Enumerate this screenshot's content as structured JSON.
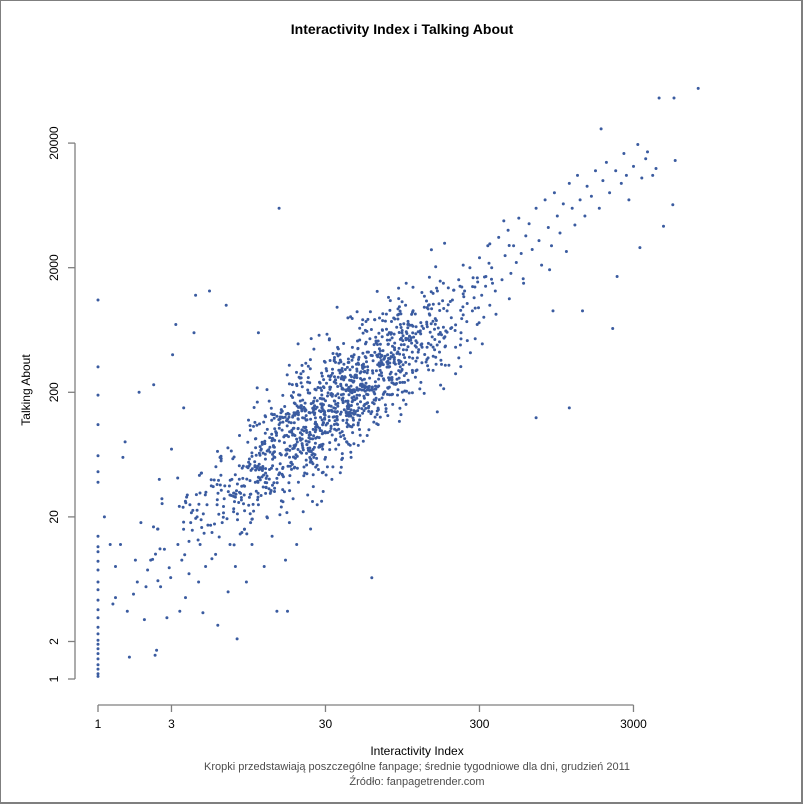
{
  "chart_data": {
    "type": "scatter",
    "title": "Interactivity Index i Talking About",
    "xlabel": "Interactivity Index",
    "ylabel": "Talking About",
    "subtitle_lines": [
      "Kropki przedstawiają poszczególne fanpage; średnie tygodniowe dla dni, grudzień 2011",
      "Źródło: fanpagetrender.com"
    ],
    "x_scale": "log",
    "y_scale": "log",
    "xlim": [
      1,
      3000
    ],
    "ylim": [
      1,
      20000
    ],
    "x_ticks": [
      1,
      3,
      30,
      300,
      3000
    ],
    "x_tick_labels": [
      "1",
      "3",
      "30",
      "300",
      "3000"
    ],
    "y_ticks": [
      1,
      2,
      20,
      200,
      2000,
      20000
    ],
    "y_tick_labels": [
      "1",
      "2",
      "20",
      "200",
      "2000",
      "20000"
    ],
    "grid": false,
    "legend": null,
    "point_color": "#3a5ba0",
    "point_count_approx": 1500,
    "trend": "strong positive log-log correlation; Talking About roughly proportional to Interactivity Index",
    "notable_points": [
      [
        7900,
        55000
      ],
      [
        4400,
        46000
      ],
      [
        5500,
        46000
      ],
      [
        1850,
        26000
      ],
      [
        2600,
        16500
      ],
      [
        3200,
        19500
      ],
      [
        3700,
        17000
      ],
      [
        4200,
        12500
      ],
      [
        5400,
        6400
      ],
      [
        5600,
        14500
      ],
      [
        4700,
        4300
      ],
      [
        3300,
        2900
      ],
      [
        2350,
        1700
      ],
      [
        1400,
        900
      ],
      [
        2200,
        650
      ],
      [
        1150,
        150
      ],
      [
        700,
        125
      ],
      [
        42,
        170
      ],
      [
        190,
        330
      ],
      [
        15,
        6000
      ],
      [
        5.8,
        1300
      ],
      [
        6.8,
        1000
      ],
      [
        3.2,
        700
      ],
      [
        1,
        1100
      ],
      [
        1,
        320
      ],
      [
        1,
        190
      ],
      [
        1,
        110
      ],
      [
        1,
        60
      ],
      [
        1,
        45
      ],
      [
        1,
        40
      ],
      [
        60,
        6.5
      ],
      [
        17,
        3.5
      ],
      [
        8,
        2.1
      ],
      [
        1.6,
        1.5
      ],
      [
        2.4,
        1.6
      ]
    ],
    "points": [
      [
        1,
        1.05
      ],
      [
        1,
        1.1
      ],
      [
        1,
        1.2
      ],
      [
        1,
        1.3
      ],
      [
        1,
        1.45
      ],
      [
        1,
        1.6
      ],
      [
        1,
        1.75
      ],
      [
        1,
        1.9
      ],
      [
        1,
        2.05
      ],
      [
        1,
        2.3
      ],
      [
        1,
        2.6
      ],
      [
        1,
        3.1
      ],
      [
        1,
        3.6
      ],
      [
        1,
        4.3
      ],
      [
        1,
        5.2
      ],
      [
        1,
        6.0
      ],
      [
        1,
        7.5
      ],
      [
        1,
        8.8
      ],
      [
        1,
        10.5
      ],
      [
        1,
        11.5
      ],
      [
        1,
        14
      ],
      [
        1,
        38
      ],
      [
        1,
        46
      ],
      [
        1,
        62
      ],
      [
        1,
        110
      ],
      [
        1,
        190
      ],
      [
        1,
        320
      ],
      [
        1,
        1100
      ],
      [
        1.1,
        20
      ],
      [
        1.2,
        12
      ],
      [
        1.25,
        4.0
      ],
      [
        1.3,
        8.0
      ],
      [
        1.3,
        4.5
      ],
      [
        1.4,
        12
      ],
      [
        1.45,
        60
      ],
      [
        1.5,
        80
      ],
      [
        1.55,
        3.5
      ],
      [
        1.6,
        1.5
      ],
      [
        1.7,
        4.8
      ],
      [
        1.75,
        9
      ],
      [
        1.8,
        6
      ],
      [
        1.85,
        200
      ],
      [
        1.9,
        18
      ],
      [
        2.0,
        3.0
      ],
      [
        2.05,
        5.5
      ],
      [
        2.1,
        7.5
      ],
      [
        2.2,
        9
      ],
      [
        2.3,
        230
      ],
      [
        2.35,
        1.55
      ],
      [
        2.4,
        1.7
      ],
      [
        2.45,
        16
      ],
      [
        2.5,
        40
      ],
      [
        2.55,
        5.5
      ],
      [
        2.6,
        28
      ],
      [
        2.7,
        11
      ],
      [
        2.8,
        3.1
      ],
      [
        2.9,
        7.8
      ],
      [
        3.0,
        70
      ],
      [
        3.05,
        400
      ],
      [
        3.2,
        700
      ],
      [
        3.3,
        12
      ],
      [
        3.4,
        3.5
      ],
      [
        3.5,
        9
      ],
      [
        3.6,
        150
      ],
      [
        3.7,
        4.5
      ],
      [
        3.8,
        30
      ],
      [
        3.9,
        7
      ],
      [
        4.0,
        18
      ],
      [
        4.2,
        600
      ],
      [
        4.3,
        1200
      ],
      [
        4.4,
        20
      ],
      [
        4.5,
        6
      ],
      [
        4.6,
        12
      ],
      [
        4.7,
        45
      ],
      [
        4.8,
        3.4
      ],
      [
        5.0,
        8
      ],
      [
        5.1,
        25
      ],
      [
        5.3,
        1300
      ],
      [
        5.5,
        15
      ],
      [
        5.6,
        35
      ],
      [
        5.8,
        10
      ],
      [
        6.0,
        2.7
      ],
      [
        6.2,
        60
      ],
      [
        6.4,
        18
      ],
      [
        6.6,
        28
      ],
      [
        6.8,
        1000
      ],
      [
        7.0,
        5
      ],
      [
        7.2,
        12
      ],
      [
        7.4,
        40
      ],
      [
        7.6,
        22
      ],
      [
        7.8,
        8
      ],
      [
        8.0,
        2.1
      ],
      [
        8.3,
        90
      ],
      [
        8.6,
        15
      ],
      [
        8.9,
        30
      ],
      [
        9.2,
        6
      ],
      [
        9.5,
        55
      ],
      [
        9.8,
        18
      ],
      [
        10,
        12
      ],
      [
        10.5,
        38
      ],
      [
        11,
        600
      ],
      [
        11,
        25
      ],
      [
        11.5,
        70
      ],
      [
        12,
        8
      ],
      [
        12.5,
        20
      ],
      [
        13,
        48
      ],
      [
        13.5,
        14
      ],
      [
        14,
        32
      ],
      [
        14.5,
        3.5
      ],
      [
        15,
        6000
      ],
      [
        15,
        110
      ],
      [
        15.5,
        24
      ],
      [
        16,
        42
      ],
      [
        16.5,
        9
      ],
      [
        17,
        3.5
      ],
      [
        17,
        70
      ],
      [
        17.5,
        18
      ],
      [
        18,
        55
      ],
      [
        18.5,
        28
      ],
      [
        19,
        90
      ],
      [
        19.5,
        12
      ],
      [
        20,
        38
      ],
      [
        20.5,
        260
      ],
      [
        21,
        65
      ],
      [
        21.5,
        22
      ],
      [
        22,
        45
      ],
      [
        22.5,
        130
      ],
      [
        23,
        30
      ],
      [
        23.5,
        80
      ],
      [
        24,
        16
      ],
      [
        24.5,
        55
      ],
      [
        25,
        35
      ],
      [
        25.5,
        180
      ],
      [
        26,
        100
      ],
      [
        26.5,
        25
      ],
      [
        27,
        48
      ],
      [
        27.5,
        75
      ],
      [
        28,
        140
      ],
      [
        29,
        32
      ],
      [
        30,
        60
      ],
      [
        31,
        95
      ],
      [
        32,
        220
      ],
      [
        33,
        40
      ],
      [
        34,
        150
      ],
      [
        35,
        70
      ],
      [
        36,
        110
      ],
      [
        37,
        300
      ],
      [
        38,
        50
      ],
      [
        39,
        180
      ],
      [
        40,
        85
      ],
      [
        41,
        130
      ],
      [
        42,
        170
      ],
      [
        43,
        250
      ],
      [
        44,
        60
      ],
      [
        45,
        95
      ],
      [
        46,
        400
      ],
      [
        47,
        140
      ],
      [
        48,
        210
      ],
      [
        49,
        75
      ],
      [
        50,
        120
      ],
      [
        52,
        330
      ],
      [
        54,
        160
      ],
      [
        56,
        90
      ],
      [
        58,
        260
      ],
      [
        60,
        6.5
      ],
      [
        60,
        140
      ],
      [
        62,
        200
      ],
      [
        64,
        500
      ],
      [
        66,
        110
      ],
      [
        68,
        300
      ],
      [
        70,
        180
      ],
      [
        72,
        250
      ],
      [
        74,
        140
      ],
      [
        76,
        400
      ],
      [
        78,
        220
      ],
      [
        80,
        600
      ],
      [
        82,
        160
      ],
      [
        84,
        350
      ],
      [
        86,
        280
      ],
      [
        88,
        190
      ],
      [
        90,
        450
      ],
      [
        92,
        700
      ],
      [
        95,
        240
      ],
      [
        98,
        380
      ],
      [
        100,
        160
      ],
      [
        105,
        520
      ],
      [
        110,
        300
      ],
      [
        115,
        850
      ],
      [
        120,
        420
      ],
      [
        125,
        240
      ],
      [
        130,
        650
      ],
      [
        135,
        350
      ],
      [
        140,
        1000
      ],
      [
        145,
        480
      ],
      [
        150,
        300
      ],
      [
        155,
        780
      ],
      [
        160,
        1300
      ],
      [
        165,
        420
      ],
      [
        170,
        580
      ],
      [
        175,
        1500
      ],
      [
        180,
        330
      ],
      [
        185,
        900
      ],
      [
        190,
        330
      ],
      [
        195,
        650
      ],
      [
        200,
        1100
      ],
      [
        210,
        460
      ],
      [
        220,
        1600
      ],
      [
        230,
        780
      ],
      [
        240,
        1300
      ],
      [
        250,
        520
      ],
      [
        260,
        2000
      ],
      [
        270,
        900
      ],
      [
        280,
        1400
      ],
      [
        290,
        700
      ],
      [
        300,
        2400
      ],
      [
        310,
        1200
      ],
      [
        320,
        800
      ],
      [
        330,
        1700
      ],
      [
        340,
        3000
      ],
      [
        350,
        1000
      ],
      [
        360,
        2000
      ],
      [
        380,
        1300
      ],
      [
        400,
        3500
      ],
      [
        420,
        1600
      ],
      [
        440,
        2500
      ],
      [
        460,
        4000
      ],
      [
        480,
        1800
      ],
      [
        500,
        3000
      ],
      [
        520,
        2200
      ],
      [
        540,
        5000
      ],
      [
        560,
        2600
      ],
      [
        580,
        1500
      ],
      [
        600,
        3600
      ],
      [
        630,
        4500
      ],
      [
        660,
        2800
      ],
      [
        700,
        125
      ],
      [
        700,
        6000
      ],
      [
        730,
        3300
      ],
      [
        760,
        2100
      ],
      [
        800,
        7000
      ],
      [
        840,
        4200
      ],
      [
        880,
        3000
      ],
      [
        900,
        900
      ],
      [
        920,
        8000
      ],
      [
        960,
        5200
      ],
      [
        1000,
        3800
      ],
      [
        1050,
        6500
      ],
      [
        1100,
        2700
      ],
      [
        1150,
        150
      ],
      [
        1150,
        9500
      ],
      [
        1200,
        6000
      ],
      [
        1250,
        4400
      ],
      [
        1300,
        11000
      ],
      [
        1350,
        7000
      ],
      [
        1400,
        900
      ],
      [
        1450,
        5200
      ],
      [
        1500,
        9000
      ],
      [
        1600,
        7500
      ],
      [
        1700,
        12000
      ],
      [
        1800,
        6000
      ],
      [
        1850,
        26000
      ],
      [
        1900,
        10000
      ],
      [
        2000,
        14000
      ],
      [
        2100,
        8000
      ],
      [
        2200,
        650
      ],
      [
        2300,
        12000
      ],
      [
        2350,
        1700
      ],
      [
        2500,
        9500
      ],
      [
        2600,
        16500
      ],
      [
        2700,
        11000
      ],
      [
        2800,
        7000
      ],
      [
        3000,
        13000
      ],
      [
        3200,
        19500
      ],
      [
        3300,
        2900
      ],
      [
        3400,
        10500
      ],
      [
        3600,
        15000
      ],
      [
        3700,
        17000
      ],
      [
        4000,
        11000
      ],
      [
        4200,
        12500
      ],
      [
        4400,
        46000
      ],
      [
        4700,
        4300
      ],
      [
        5400,
        6400
      ],
      [
        5500,
        46000
      ],
      [
        5600,
        14500
      ],
      [
        7900,
        55000
      ]
    ]
  }
}
